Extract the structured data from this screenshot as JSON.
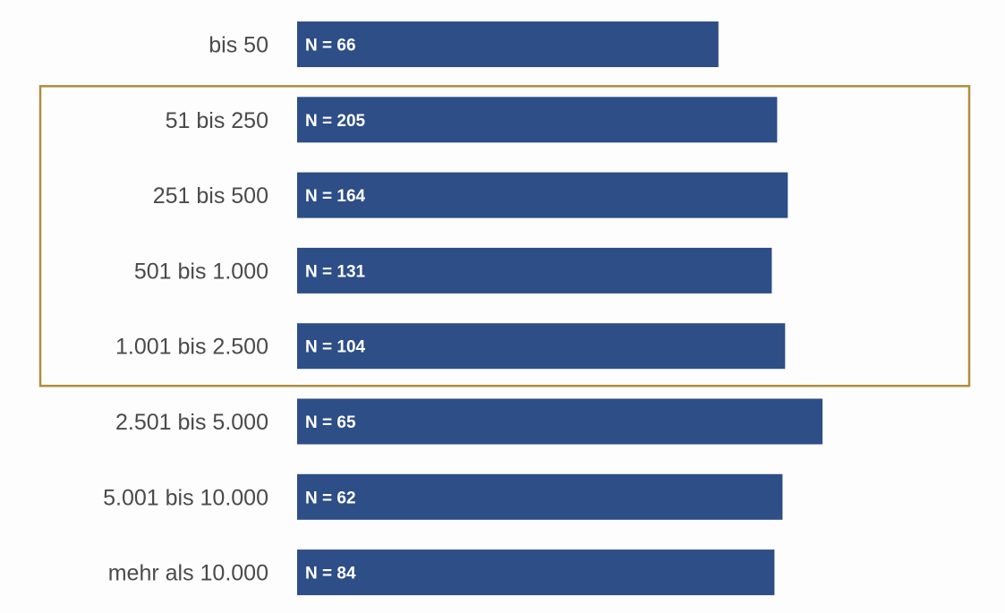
{
  "colors": {
    "bar": "#2d4e86",
    "highlight_frame": "#b08d3c",
    "label_text": "#4a4a4a",
    "bar_text": "#ffffff"
  },
  "chart_data": {
    "type": "bar",
    "orientation": "horizontal",
    "title": "",
    "xlabel": "",
    "ylabel": "",
    "grid": false,
    "legend": "none",
    "xlim": [
      0,
      100
    ],
    "categories": [
      "bis 50",
      "51 bis 250",
      "251 bis 500",
      "501 bis 1.000",
      "1.001 bis 2.500",
      "2.501 bis 5.000",
      "5.001 bis 10.000",
      "mehr als 10.000"
    ],
    "values": [
      79,
      90,
      92,
      89,
      91.5,
      98.5,
      91,
      89.5
    ],
    "data_labels": [
      "N = 66",
      "N = 205",
      "N = 164",
      "N = 131",
      "N = 104",
      "N = 65",
      "N = 62",
      "N = 84"
    ],
    "highlighted_categories": [
      "51 bis 250",
      "251 bis 500",
      "501 bis 1.000",
      "1.001 bis 2.500"
    ]
  }
}
